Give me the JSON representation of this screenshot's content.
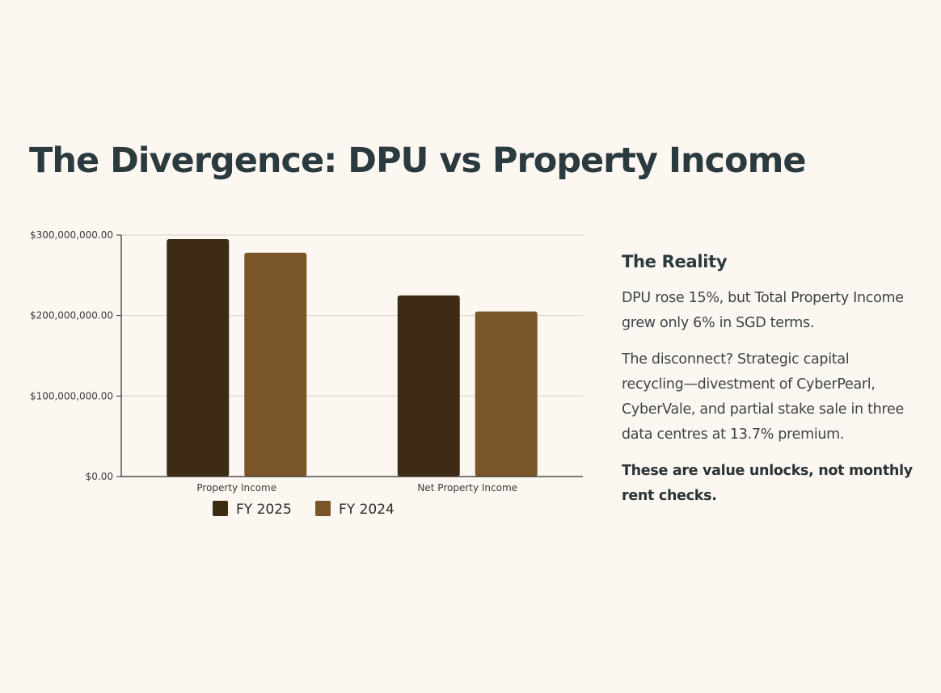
{
  "slide": {
    "title": "The Divergence: DPU vs Property Income"
  },
  "side_panel": {
    "heading": "The Reality",
    "paragraphs": [
      "DPU rose 15%, but Total Property Income grew only 6% in SGD terms.",
      "The disconnect? Strategic capital recycling—divestment of CyberPearl, CyberVale, and partial stake sale in three data centres at 13.7% premium."
    ],
    "emphasis": "These are value unlocks, not monthly rent checks."
  },
  "chart_data": {
    "type": "bar",
    "categories": [
      "Property Income",
      "Net Property Income"
    ],
    "series": [
      {
        "name": "FY 2025",
        "color": "#3d2b14",
        "values": [
          295000000,
          225000000
        ]
      },
      {
        "name": "FY 2024",
        "color": "#7a5528",
        "values": [
          278000000,
          205000000
        ]
      }
    ],
    "ylim": [
      0,
      300000000
    ],
    "y_ticks": [
      {
        "value": 0,
        "label": "$0.00"
      },
      {
        "value": 100000000,
        "label": "$100,000,000.00"
      },
      {
        "value": 200000000,
        "label": "$200,000,000.00"
      },
      {
        "value": 300000000,
        "label": "$300,000,000.00"
      }
    ],
    "grid": true,
    "legend_position": "bottom"
  }
}
